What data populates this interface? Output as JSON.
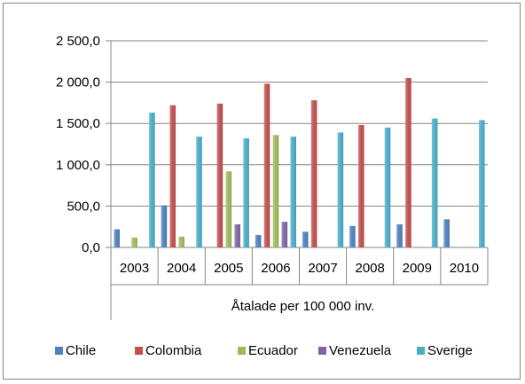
{
  "chart_data": {
    "type": "bar",
    "title": "",
    "xlabel": "Åtalade per 100 000 inv.",
    "ylabel": "",
    "ylim": [
      0,
      2500
    ],
    "y_ticks": [
      0,
      500,
      1000,
      1500,
      2000,
      2500
    ],
    "y_tick_labels": [
      "0,0",
      "500,0",
      "1 000,0",
      "1 500,0",
      "2 000,0",
      "2 500,0"
    ],
    "grid": true,
    "legend_position": "bottom",
    "categories": [
      "2003",
      "2004",
      "2005",
      "2006",
      "2007",
      "2008",
      "2009",
      "2010"
    ],
    "series": [
      {
        "name": "Chile",
        "color": "#4F81BD",
        "values": [
          220,
          510,
          null,
          150,
          190,
          260,
          280,
          340
        ]
      },
      {
        "name": "Colombia",
        "color": "#C0504D",
        "values": [
          null,
          1720,
          1740,
          1980,
          1780,
          1480,
          2050,
          null
        ]
      },
      {
        "name": "Ecuador",
        "color": "#9BBB59",
        "values": [
          120,
          130,
          920,
          1360,
          null,
          null,
          null,
          null
        ]
      },
      {
        "name": "Venezuela",
        "color": "#8064A2",
        "values": [
          null,
          null,
          280,
          310,
          null,
          null,
          null,
          null
        ]
      },
      {
        "name": "Sverige",
        "color": "#4BACC6",
        "values": [
          1630,
          1340,
          1320,
          1340,
          1390,
          1450,
          1560,
          1540
        ]
      }
    ]
  }
}
